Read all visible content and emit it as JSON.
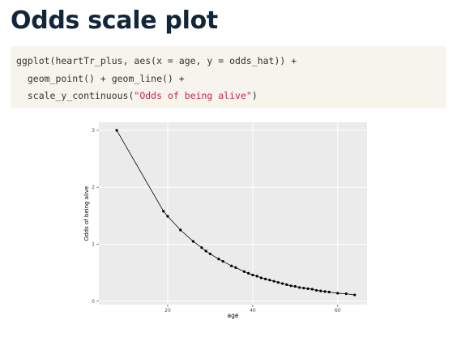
{
  "header": {
    "title": "Odds scale plot"
  },
  "code": {
    "lines": [
      [
        {
          "text": "ggplot(heartTr_plus, aes(x = age, y = odds_hat)) +",
          "kind": "plain"
        }
      ],
      [
        {
          "text": "  geom_point() + geom_line() +",
          "kind": "plain"
        }
      ],
      [
        {
          "text": "  scale_y_continuous(",
          "kind": "plain"
        },
        {
          "text": "\"Odds of being alive\"",
          "kind": "string"
        },
        {
          "text": ")",
          "kind": "plain"
        }
      ]
    ]
  },
  "chart_data": {
    "type": "line",
    "x_label": "age",
    "y_label": "Odds of being alive",
    "x": [
      8,
      19,
      20,
      23,
      26,
      28,
      29,
      30,
      32,
      33,
      35,
      36,
      38,
      39,
      40,
      41,
      42,
      43,
      44,
      45,
      46,
      47,
      48,
      49,
      50,
      51,
      52,
      53,
      54,
      55,
      56,
      57,
      58,
      60,
      62,
      64
    ],
    "values": [
      3.0,
      1.58,
      1.49,
      1.25,
      1.05,
      0.94,
      0.88,
      0.83,
      0.74,
      0.7,
      0.62,
      0.59,
      0.52,
      0.49,
      0.46,
      0.44,
      0.41,
      0.39,
      0.37,
      0.35,
      0.33,
      0.31,
      0.29,
      0.27,
      0.26,
      0.24,
      0.23,
      0.22,
      0.21,
      0.19,
      0.18,
      0.17,
      0.16,
      0.14,
      0.13,
      0.11
    ],
    "color": "#000000",
    "xlim": [
      3.8,
      66.9
    ],
    "xticks": [
      20,
      40,
      60
    ],
    "ylim": [
      -0.06,
      3.14
    ],
    "yticks": [
      0,
      1,
      2,
      3
    ],
    "grid": true
  }
}
